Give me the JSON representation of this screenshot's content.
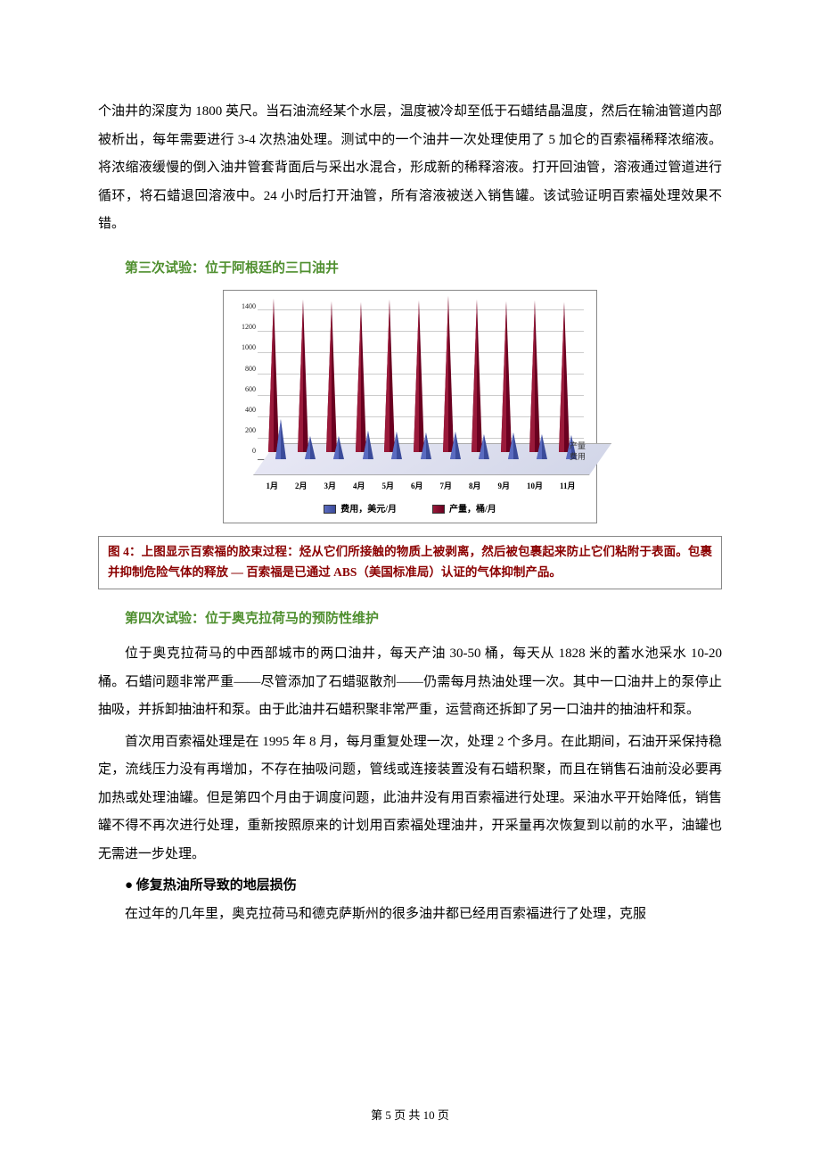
{
  "intro_para": "个油井的深度为 1800 英尺。当石油流经某个水层，温度被冷却至低于石蜡结晶温度，然后在输油管道内部被析出，每年需要进行 3-4 次热油处理。测试中的一个油井一次处理使用了 5 加仑的百索福稀释浓缩液。将浓缩液缓慢的倒入油井管套背面后与采出水混合，形成新的稀释溶液。打开回油管，溶液通过管道进行循环，将石蜡退回溶液中。24 小时后打开油管，所有溶液被送入销售罐。该试验证明百索福处理效果不错。",
  "trial3": {
    "heading": "第三次试验：位于阿根廷的三口油井"
  },
  "chart": {
    "type": "3d-cone-bar",
    "months": [
      "1月",
      "2月",
      "3月",
      "4月",
      "5月",
      "6月",
      "7月",
      "8月",
      "9月",
      "10月",
      "11月"
    ],
    "y_ticks": [
      "0",
      "200",
      "400",
      "600",
      "800",
      "1000",
      "1200",
      "1400"
    ],
    "y_max": 1500,
    "series_cost": {
      "label": "费用，美元/月",
      "legend_short": "费用",
      "color_front": "#3b4b9a",
      "color_side": "#5a6bc0",
      "values": [
        380,
        220,
        220,
        270,
        260,
        250,
        260,
        240,
        250,
        240,
        230
      ]
    },
    "series_prod": {
      "label": "产量，桶/月",
      "legend_short": "产量",
      "color_front": "#6a0020",
      "color_side": "#9a1a3a",
      "values": [
        1440,
        1430,
        1410,
        1400,
        1430,
        1420,
        1460,
        1430,
        1410,
        1420,
        1400
      ]
    },
    "background_color": "#ffffff",
    "grid_color": "#cccccc"
  },
  "caption": "图 4：上图显示百索福的胶束过程：烃从它们所接触的物质上被剥离，然后被包裹起来防止它们粘附于表面。包裹并抑制危险气体的释放 — 百索福是已通过 ABS（美国标准局）认证的气体抑制产品。",
  "trial4": {
    "heading": "第四次试验：位于奥克拉荷马的预防性维护",
    "p1": "位于奥克拉荷马的中西部城市的两口油井，每天产油 30-50 桶，每天从 1828 米的蓄水池采水 10-20 桶。石蜡问题非常严重——尽管添加了石蜡驱散剂——仍需每月热油处理一次。其中一口油井上的泵停止抽吸，并拆卸抽油杆和泵。由于此油井石蜡积聚非常严重，运营商还拆卸了另一口油井的抽油杆和泵。",
    "p2": "首次用百索福处理是在 1995 年 8 月，每月重复处理一次，处理 2 个多月。在此期间，石油开采保持稳定，流线压力没有再增加，不存在抽吸问题，管线或连接装置没有石蜡积聚，而且在销售石油前没必要再加热或处理油罐。但是第四个月由于调度问题，此油井没有用百索福进行处理。采油水平开始降低，销售罐不得不再次进行处理，重新按照原来的计划用百索福处理油井，开采量再次恢复到以前的水平，油罐也无需进一步处理。"
  },
  "repair": {
    "heading": "●  修复热油所导致的地层损伤",
    "p1": "在过年的几年里，奥克拉荷马和德克萨斯州的很多油井都已经用百索福进行了处理，克服"
  },
  "footer": "第 5 页 共 10 页"
}
